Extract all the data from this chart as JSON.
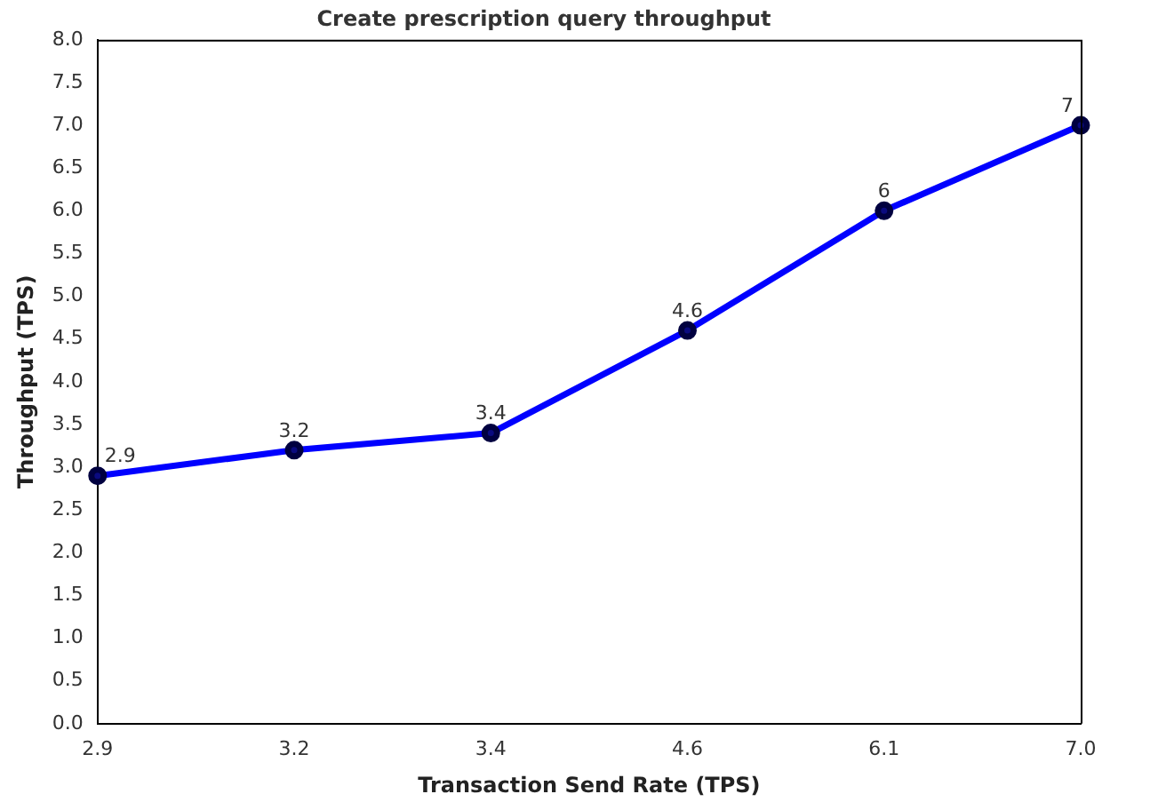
{
  "chart_data": {
    "type": "line",
    "title": "Create prescription query throughput",
    "xlabel": "Transaction Send Rate (TPS)",
    "ylabel": "Throughput (TPS)",
    "categories": [
      "2.9",
      "3.2",
      "3.4",
      "4.6",
      "6.1",
      "7.0"
    ],
    "series": [
      {
        "color": "#0000ff",
        "values": [
          2.9,
          3.2,
          3.4,
          4.6,
          6,
          7
        ]
      }
    ],
    "ylim": [
      0,
      8
    ],
    "yticks": [
      {
        "value": 0,
        "label": "0.0"
      },
      {
        "value": 0.5,
        "label": "0.5"
      },
      {
        "value": 1,
        "label": "1.0"
      },
      {
        "value": 1.5,
        "label": "1.5"
      },
      {
        "value": 2,
        "label": "2.0"
      },
      {
        "value": 2.5,
        "label": "2.5"
      },
      {
        "value": 3,
        "label": "3.0"
      },
      {
        "value": 3.5,
        "label": "3.5"
      },
      {
        "value": 4,
        "label": "4.0"
      },
      {
        "value": 4.5,
        "label": "4.5"
      },
      {
        "value": 5,
        "label": "5.0"
      },
      {
        "value": 5.5,
        "label": "5.5"
      },
      {
        "value": 6,
        "label": "6.0"
      },
      {
        "value": 6.5,
        "label": "6.5"
      },
      {
        "value": 7,
        "label": "7.0"
      },
      {
        "value": 7.5,
        "label": "7.5"
      },
      {
        "value": 8,
        "label": "8.0"
      }
    ],
    "grid": false,
    "legend": false,
    "marker": "circle",
    "line_style": "solid",
    "data_labels": true
  }
}
